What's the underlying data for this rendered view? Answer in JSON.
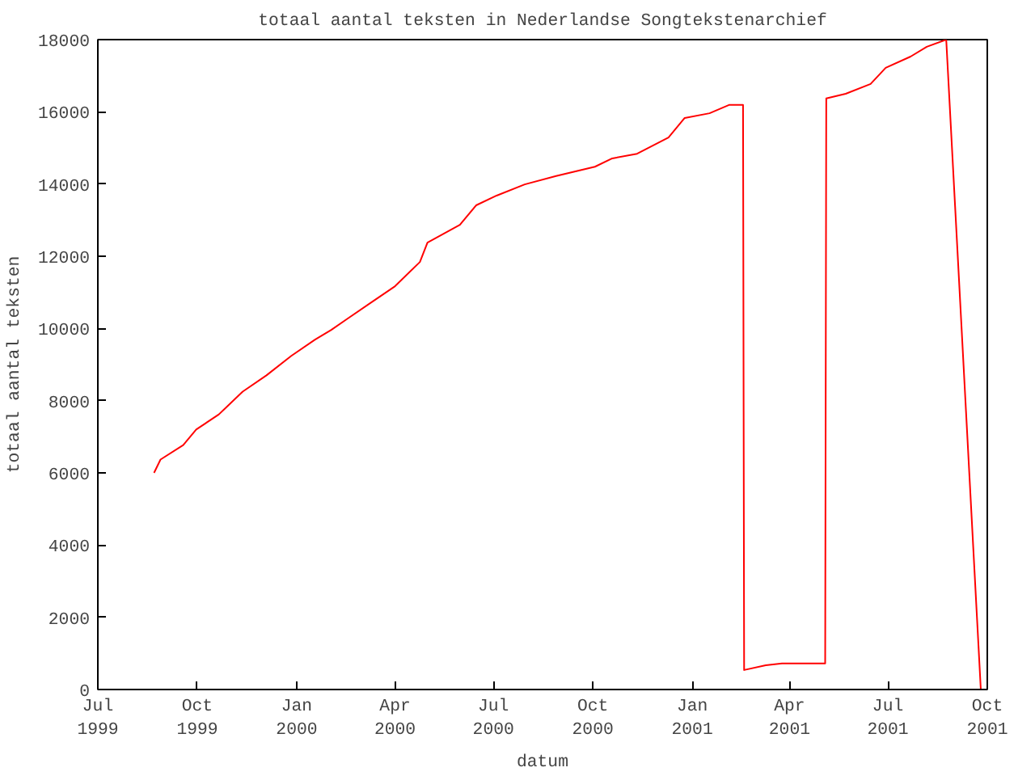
{
  "chart_data": {
    "type": "line",
    "title": "totaal aantal teksten in Nederlandse Songtekstenarchief",
    "xlabel": "datum",
    "ylabel": "totaal aantal teksten",
    "x": [
      "1999-08-22",
      "1999-08-28",
      "1999-09-18",
      "1999-09-30",
      "1999-10-21",
      "1999-11-12",
      "1999-12-04",
      "1999-12-27",
      "2000-01-18",
      "2000-02-02",
      "2000-02-17",
      "2000-03-10",
      "2000-04-01",
      "2000-04-24",
      "2000-05-01",
      "2000-05-31",
      "2000-06-15",
      "2000-07-04",
      "2000-07-30",
      "2000-08-28",
      "2000-10-03",
      "2000-10-19",
      "2000-11-11",
      "2000-12-10",
      "2000-12-25",
      "2001-01-17",
      "2001-02-04",
      "2001-02-17",
      "2001-02-18",
      "2001-03-10",
      "2001-03-25",
      "2001-05-04",
      "2001-05-05",
      "2001-05-23",
      "2001-06-15",
      "2001-06-29",
      "2001-07-22",
      "2001-08-06",
      "2001-08-24",
      "2001-09-25"
    ],
    "series": [
      {
        "color": "#ff0000",
        "values": [
          6000,
          6370,
          6770,
          7200,
          7620,
          8250,
          8700,
          9240,
          9690,
          9960,
          10270,
          10720,
          11170,
          11840,
          12380,
          12870,
          13410,
          13680,
          13990,
          14220,
          14480,
          14710,
          14840,
          15290,
          15830,
          15960,
          16190,
          16190,
          540,
          670,
          720,
          720,
          16370,
          16500,
          16770,
          17220,
          17530,
          17800,
          18000,
          0
        ]
      }
    ],
    "xlim": [
      "1999-07-01",
      "2001-10-01"
    ],
    "xticks": [
      {
        "value": "1999-07-01",
        "label": "Jul\n1999"
      },
      {
        "value": "1999-10-01",
        "label": "Oct\n1999"
      },
      {
        "value": "2000-01-01",
        "label": "Jan\n2000"
      },
      {
        "value": "2000-04-01",
        "label": "Apr\n2000"
      },
      {
        "value": "2000-07-01",
        "label": "Jul\n2000"
      },
      {
        "value": "2000-10-01",
        "label": "Oct\n2000"
      },
      {
        "value": "2001-01-01",
        "label": "Jan\n2001"
      },
      {
        "value": "2001-04-01",
        "label": "Apr\n2001"
      },
      {
        "value": "2001-07-01",
        "label": "Jul\n2001"
      },
      {
        "value": "2001-10-01",
        "label": "Oct\n2001"
      }
    ],
    "ylim": [
      0,
      18000
    ],
    "yticks": [
      0,
      2000,
      4000,
      6000,
      8000,
      10000,
      12000,
      14000,
      16000,
      18000
    ],
    "grid": false,
    "marker": "none",
    "line_style": "solid"
  }
}
